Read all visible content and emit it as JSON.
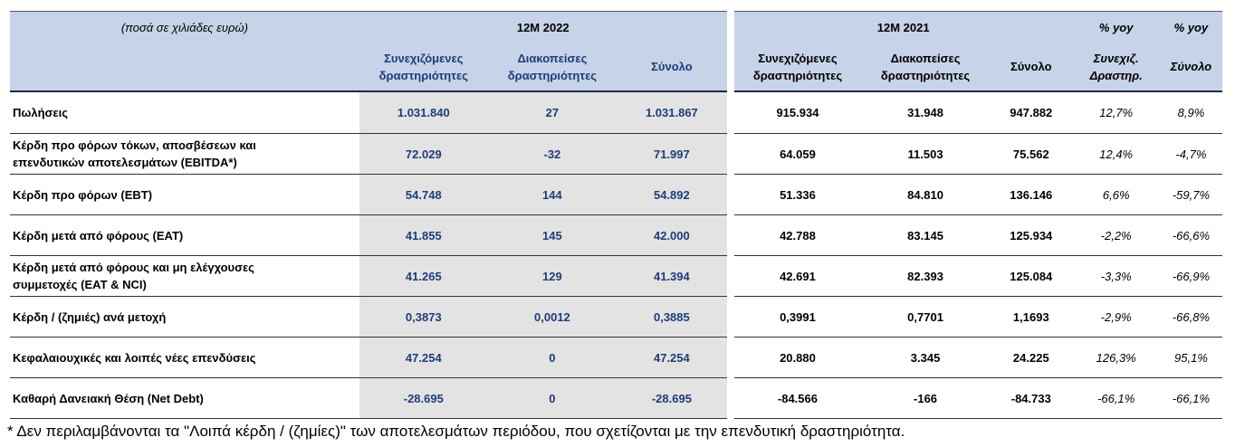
{
  "header": {
    "units_label": "(ποσά σε χιλιάδες ευρώ)",
    "period_2022": "12M 2022",
    "period_2021": "12M 2021",
    "yoy_label_1": "% yoy",
    "yoy_label_2": "% yoy",
    "sub": {
      "continuing_2022_l1": "Συνεχιζόμενες",
      "continuing_2022_l2": "δραστηριότητες",
      "discontinued_2022_l1": "Διακοπείσες",
      "discontinued_2022_l2": "δραστηριότητες",
      "total_2022": "Σύνολο",
      "continuing_2021_l1": "Συνεχιζόμενες",
      "continuing_2021_l2": "δραστηριότητες",
      "discontinued_2021_l1": "Διακοπείσες",
      "discontinued_2021_l2": "δραστηριότητες",
      "total_2021": "Σύνολο",
      "yoy_cont_l1": "Συνεχιζ.",
      "yoy_cont_l2": "Δραστηρ.",
      "yoy_total": "Σύνολο"
    }
  },
  "rows": [
    {
      "label_l1": "Πωλήσεις",
      "label_l2": "",
      "c22": "1.031.840",
      "d22": "27",
      "t22": "1.031.867",
      "c21": "915.934",
      "d21": "31.948",
      "t21": "947.882",
      "yoy_c": "12,7%",
      "yoy_t": "8,9%"
    },
    {
      "label_l1": "Κέρδη προ φόρων τόκων, αποσβέσεων και",
      "label_l2": "επενδυτικών αποτελεσμάτων (EBITDA*)",
      "c22": "72.029",
      "d22": "-32",
      "t22": "71.997",
      "c21": "64.059",
      "d21": "11.503",
      "t21": "75.562",
      "yoy_c": "12,4%",
      "yoy_t": "-4,7%"
    },
    {
      "label_l1": "Κέρδη προ φόρων (EBT)",
      "label_l2": "",
      "c22": "54.748",
      "d22": "144",
      "t22": "54.892",
      "c21": "51.336",
      "d21": "84.810",
      "t21": "136.146",
      "yoy_c": "6,6%",
      "yoy_t": "-59,7%"
    },
    {
      "label_l1": "Κέρδη μετά από φόρους (EAT)",
      "label_l2": "",
      "c22": "41.855",
      "d22": "145",
      "t22": "42.000",
      "c21": "42.788",
      "d21": "83.145",
      "t21": "125.934",
      "yoy_c": "-2,2%",
      "yoy_t": "-66,6%"
    },
    {
      "label_l1": "Κέρδη μετά από φόρους και μη ελέγχουσες",
      "label_l2": "συμμετοχές (EAT & NCI)",
      "c22": "41.265",
      "d22": "129",
      "t22": "41.394",
      "c21": "42.691",
      "d21": "82.393",
      "t21": "125.084",
      "yoy_c": "-3,3%",
      "yoy_t": "-66,9%"
    },
    {
      "label_l1": "Κέρδη / (ζημιές) ανά μετοχή",
      "label_l2": "",
      "c22": "0,3873",
      "d22": "0,0012",
      "t22": "0,3885",
      "c21": "0,3991",
      "d21": "0,7701",
      "t21": "1,1693",
      "yoy_c": "-2,9%",
      "yoy_t": "-66,8%"
    },
    {
      "label_l1": "Κεφαλαιουχικές και λοιπές νέες επενδύσεις",
      "label_l2": "",
      "c22": "47.254",
      "d22": "0",
      "t22": "47.254",
      "c21": "20.880",
      "d21": "3.345",
      "t21": "24.225",
      "yoy_c": "126,3%",
      "yoy_t": "95,1%"
    },
    {
      "label_l1": "Καθαρή Δανειακή Θέση (Net Debt)",
      "label_l2": "",
      "c22": "-28.695",
      "d22": "0",
      "t22": "-28.695",
      "c21": "-84.566",
      "d21": "-166",
      "t21": "-84.733",
      "yoy_c": "-66,1%",
      "yoy_t": "-66,1%"
    }
  ],
  "footnote": "* Δεν περιλαμβάνονται τα \"Λοιπά κέρδη / (ζημίες)\" των αποτελεσμάτων περιόδου, που σχετίζονται με την επενδυτική δραστηριότητα.",
  "colors": {
    "header_bg": "#c6d3e8",
    "col_2022_bg": "#e3e3e3",
    "value_blue": "#1f3d7a"
  }
}
